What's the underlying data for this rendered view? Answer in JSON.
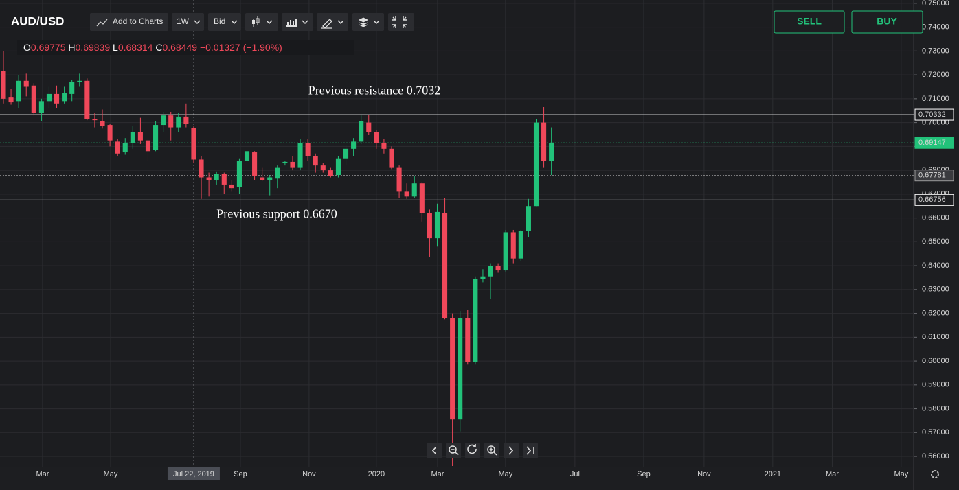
{
  "header": {
    "symbol": "AUD/USD",
    "add_to_charts": "Add to Charts",
    "interval": "1W",
    "price_type": "Bid",
    "sell": "SELL",
    "buy": "BUY",
    "ohlc": [
      {
        "key": "O",
        "value": "0.69775"
      },
      {
        "key": "H",
        "value": "0.69839"
      },
      {
        "key": "L",
        "value": "0.68314"
      },
      {
        "key": "C",
        "value": "0.68449"
      }
    ],
    "change": "−0.01327 (−1.90%)"
  },
  "chart_data": {
    "type": "candlestick",
    "annotations": [
      {
        "text": "Previous resistance 0.7032",
        "value": 0.7032
      },
      {
        "text": "Previous support 0.6670",
        "value": 0.667
      }
    ],
    "up_color": "#22c27a",
    "down_color": "#f0485a",
    "open": [
      0.7215,
      0.7105,
      0.709,
      0.7175,
      0.7155,
      0.704,
      0.709,
      0.712,
      0.709,
      0.712,
      0.717,
      0.7175,
      0.7015,
      0.7005,
      0.699,
      0.692,
      0.6875,
      0.6915,
      0.696,
      0.6925,
      0.6885,
      0.699,
      0.703,
      0.698,
      0.7025,
      0.69775,
      0.6845,
      0.677,
      0.676,
      0.6785,
      0.674,
      0.673,
      0.684,
      0.6875,
      0.677,
      0.676,
      0.6765,
      0.683,
      0.6835,
      0.681,
      0.6915,
      0.686,
      0.682,
      0.68,
      0.678,
      0.685,
      0.689,
      0.692,
      0.7,
      0.696,
      0.6915,
      0.689,
      0.681,
      0.671,
      0.669,
      0.6745,
      0.662,
      0.6515,
      0.662,
      0.618,
      0.5755,
      0.618,
      0.5995,
      0.6345,
      0.6355,
      0.64,
      0.638,
      0.654,
      0.643,
      0.6545,
      0.665,
      0.7,
      0.684
    ],
    "high": [
      0.73,
      0.714,
      0.72,
      0.7205,
      0.7165,
      0.71,
      0.715,
      0.7155,
      0.715,
      0.718,
      0.7205,
      0.7185,
      0.704,
      0.7055,
      0.6995,
      0.693,
      0.6935,
      0.6985,
      0.702,
      0.6935,
      0.7005,
      0.7045,
      0.7045,
      0.704,
      0.708,
      0.69839,
      0.686,
      0.679,
      0.6795,
      0.679,
      0.676,
      0.685,
      0.6895,
      0.688,
      0.681,
      0.678,
      0.682,
      0.684,
      0.686,
      0.693,
      0.693,
      0.687,
      0.683,
      0.681,
      0.686,
      0.6905,
      0.6935,
      0.703,
      0.7032,
      0.697,
      0.693,
      0.69,
      0.682,
      0.6745,
      0.6775,
      0.675,
      0.6635,
      0.666,
      0.6685,
      0.62,
      0.621,
      0.6215,
      0.6355,
      0.6385,
      0.641,
      0.641,
      0.655,
      0.655,
      0.655,
      0.668,
      0.7015,
      0.7065,
      0.698
    ],
    "low": [
      0.708,
      0.7075,
      0.706,
      0.711,
      0.703,
      0.7005,
      0.706,
      0.706,
      0.708,
      0.709,
      0.715,
      0.701,
      0.698,
      0.6975,
      0.69,
      0.686,
      0.6865,
      0.689,
      0.691,
      0.684,
      0.688,
      0.696,
      0.6925,
      0.696,
      0.698,
      0.68314,
      0.668,
      0.669,
      0.674,
      0.67,
      0.671,
      0.67,
      0.68,
      0.676,
      0.6755,
      0.6695,
      0.6725,
      0.682,
      0.68,
      0.68,
      0.684,
      0.679,
      0.679,
      0.677,
      0.677,
      0.682,
      0.686,
      0.691,
      0.695,
      0.689,
      0.687,
      0.6805,
      0.6685,
      0.668,
      0.6685,
      0.6585,
      0.6435,
      0.648,
      0.6175,
      0.556,
      0.5705,
      0.5985,
      0.5985,
      0.633,
      0.626,
      0.637,
      0.6375,
      0.641,
      0.642,
      0.652,
      0.665,
      0.681,
      0.678
    ],
    "close": [
      0.71,
      0.7085,
      0.7175,
      0.715,
      0.704,
      0.709,
      0.712,
      0.708,
      0.7125,
      0.717,
      0.7175,
      0.7015,
      0.701,
      0.6985,
      0.6925,
      0.687,
      0.6915,
      0.696,
      0.6925,
      0.688,
      0.699,
      0.703,
      0.698,
      0.7025,
      0.6995,
      0.68449,
      0.677,
      0.676,
      0.6785,
      0.674,
      0.6725,
      0.684,
      0.688,
      0.6775,
      0.676,
      0.677,
      0.681,
      0.6835,
      0.681,
      0.6915,
      0.686,
      0.682,
      0.68,
      0.6775,
      0.685,
      0.689,
      0.692,
      0.7005,
      0.696,
      0.6915,
      0.689,
      0.681,
      0.671,
      0.669,
      0.6745,
      0.662,
      0.6515,
      0.6625,
      0.618,
      0.5755,
      0.618,
      0.5995,
      0.6345,
      0.6355,
      0.64,
      0.638,
      0.654,
      0.643,
      0.6545,
      0.665,
      0.7,
      0.684,
      0.6915
    ],
    "price_lines": [
      {
        "value": 0.70332,
        "color": "#ffffff",
        "style": "solid"
      },
      {
        "value": 0.69147,
        "color": "#22c27a",
        "style": "dotted"
      },
      {
        "value": 0.67781,
        "color": "#9a9a9a",
        "style": "dotted"
      },
      {
        "value": 0.66756,
        "color": "#ffffff",
        "style": "solid"
      }
    ],
    "ylim": [
      0.5557,
      0.7514
    ],
    "yticks": [
      {
        "value": 0.75,
        "label": "0.75000"
      },
      {
        "value": 0.74,
        "label": "0.74000"
      },
      {
        "value": 0.73,
        "label": "0.73000"
      },
      {
        "value": 0.72,
        "label": "0.72000"
      },
      {
        "value": 0.71,
        "label": "0.71000"
      },
      {
        "value": 0.7,
        "label": "0.70000"
      },
      {
        "value": 0.69,
        "label": "0.69000"
      },
      {
        "value": 0.68,
        "label": "0.68000"
      },
      {
        "value": 0.67,
        "label": "0.67000"
      },
      {
        "value": 0.66,
        "label": "0.66000"
      },
      {
        "value": 0.65,
        "label": "0.65000"
      },
      {
        "value": 0.64,
        "label": "0.64000"
      },
      {
        "value": 0.63,
        "label": "0.63000"
      },
      {
        "value": 0.62,
        "label": "0.62000"
      },
      {
        "value": 0.61,
        "label": "0.61000"
      },
      {
        "value": 0.6,
        "label": "0.60000"
      },
      {
        "value": 0.59,
        "label": "0.59000"
      },
      {
        "value": 0.58,
        "label": "0.58000"
      },
      {
        "value": 0.57,
        "label": "0.57000"
      },
      {
        "value": 0.56,
        "label": "0.56000"
      }
    ],
    "xlim": [
      -0.45,
      119.6
    ],
    "xticks": [
      {
        "value": 5.14,
        "label": "Mar"
      },
      {
        "value": 14.08,
        "label": "May"
      },
      {
        "value": 25,
        "label": "Jul 22, 2019"
      },
      {
        "value": 31.14,
        "label": "Sep"
      },
      {
        "value": 40.16,
        "label": "Nov"
      },
      {
        "value": 49,
        "label": "2020"
      },
      {
        "value": 57.04,
        "label": "Mar"
      },
      {
        "value": 65.97,
        "label": "May"
      },
      {
        "value": 75.09,
        "label": "Jul"
      },
      {
        "value": 84.12,
        "label": "Sep"
      },
      {
        "value": 92.06,
        "label": "Nov"
      },
      {
        "value": 101.08,
        "label": "2021"
      },
      {
        "value": 108.9,
        "label": "Mar"
      },
      {
        "value": 117.96,
        "label": "May"
      }
    ],
    "highlight_xtick": 2,
    "grid": true
  }
}
